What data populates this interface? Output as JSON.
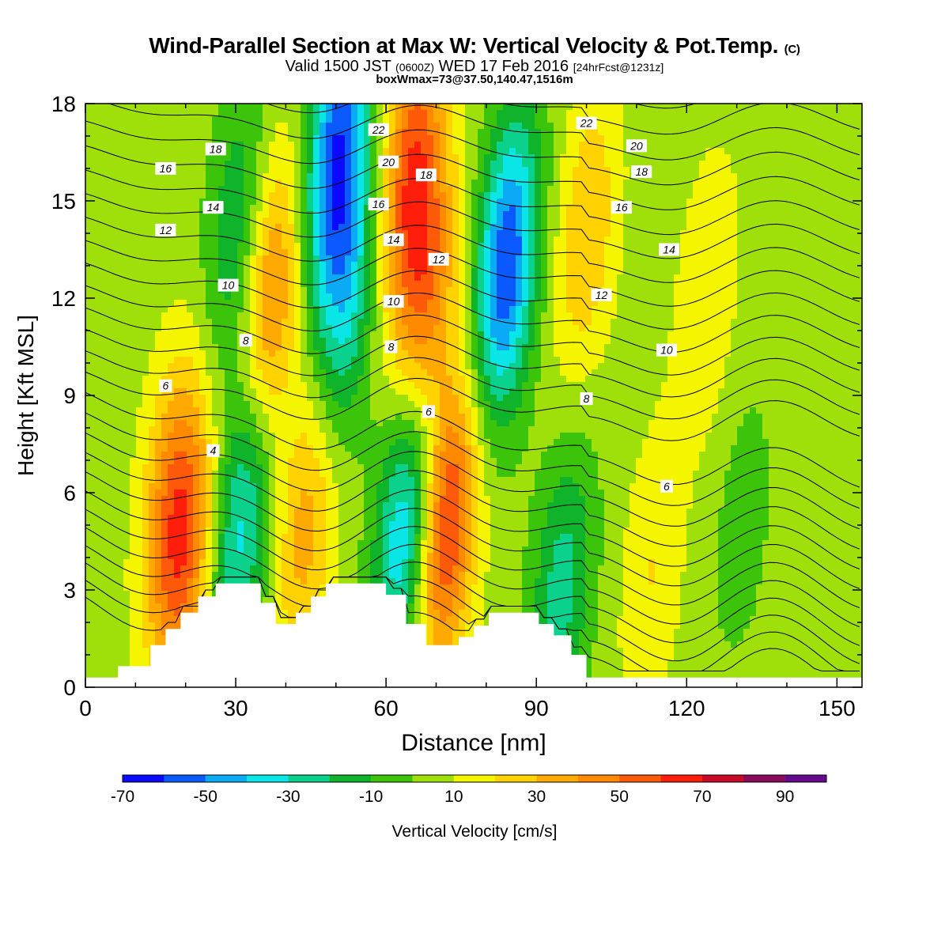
{
  "title": {
    "main": "Wind-Parallel Section at Max W: Vertical Velocity & Pot.Temp.",
    "copyright": "(C)",
    "valid_prefix": "Valid 1500 JST",
    "valid_z": "(0600Z)",
    "valid_date": "WED 17 Feb 2016",
    "forecast": "[24hrFcst@1231z]",
    "box_info": "boxWmax=73@37.50,140.47,1516m"
  },
  "colors": {
    "bins": [
      "#0a0aff",
      "#0a5aff",
      "#0aaaf5",
      "#0ae6e6",
      "#0ad28c",
      "#10b42a",
      "#3cc40a",
      "#a0e00a",
      "#f5f500",
      "#ffd200",
      "#ffaa00",
      "#ff8a00",
      "#ff5a0a",
      "#ff1e0a",
      "#c80a28",
      "#8c0a5a",
      "#640a8c"
    ],
    "terrain": "#ffffff",
    "contour": "#000000"
  },
  "chart_data": {
    "type": "heatmap",
    "xlabel": "Distance [nm]",
    "ylabel": "Height [Kft MSL]",
    "xlim": [
      0,
      155
    ],
    "ylim": [
      0,
      18
    ],
    "xticks": [
      0,
      30,
      60,
      90,
      120,
      150
    ],
    "yticks": [
      0,
      3,
      6,
      9,
      12,
      15,
      18
    ],
    "colorbar": {
      "label": "Vertical Velocity [cm/s]",
      "levels": [
        -70,
        -60,
        -50,
        -40,
        -30,
        -20,
        -10,
        0,
        10,
        20,
        30,
        40,
        50,
        60,
        70,
        80,
        90,
        100
      ],
      "tick_labels": [
        -70,
        -50,
        -30,
        -10,
        10,
        30,
        50,
        70,
        90
      ]
    },
    "terrain": [
      [
        0,
        0.3
      ],
      [
        6.5,
        0.3
      ],
      [
        6.5,
        0.65
      ],
      [
        13,
        0.65
      ],
      [
        13,
        1.3
      ],
      [
        16,
        1.3
      ],
      [
        16,
        1.8
      ],
      [
        19,
        1.8
      ],
      [
        19,
        2.3
      ],
      [
        22.5,
        2.3
      ],
      [
        22.5,
        2.8
      ],
      [
        26,
        2.8
      ],
      [
        26,
        3.2
      ],
      [
        35,
        3.2
      ],
      [
        35,
        2.6
      ],
      [
        38,
        2.6
      ],
      [
        38,
        1.95
      ],
      [
        42,
        1.95
      ],
      [
        42,
        2.3
      ],
      [
        45,
        2.3
      ],
      [
        45,
        2.8
      ],
      [
        48,
        2.8
      ],
      [
        48,
        3.2
      ],
      [
        60,
        3.2
      ],
      [
        60,
        2.85
      ],
      [
        64,
        2.85
      ],
      [
        64,
        1.95
      ],
      [
        68,
        1.95
      ],
      [
        68,
        1.3
      ],
      [
        74.5,
        1.3
      ],
      [
        74.5,
        1.55
      ],
      [
        77.5,
        1.55
      ],
      [
        77.5,
        1.9
      ],
      [
        80.5,
        1.9
      ],
      [
        80.5,
        2.3
      ],
      [
        90.5,
        2.3
      ],
      [
        90.5,
        1.95
      ],
      [
        93.5,
        1.95
      ],
      [
        93.5,
        1.6
      ],
      [
        97,
        1.6
      ],
      [
        97,
        1.0
      ],
      [
        100,
        1.0
      ],
      [
        100,
        0.3
      ],
      [
        155,
        0.3
      ]
    ],
    "updraft_max": {
      "value": 73,
      "location": "37.50,140.47",
      "height_m": 1516
    },
    "w_bands": [
      {
        "x": 17,
        "y": 6,
        "w": 30
      },
      {
        "x": 20,
        "y": 4,
        "w": 40
      },
      {
        "x": 31,
        "y": 5,
        "w": -40
      },
      {
        "x": 30,
        "y": 14,
        "w": -25
      },
      {
        "x": 37,
        "y": 12,
        "w": 40
      },
      {
        "x": 44,
        "y": 5,
        "w": 30
      },
      {
        "x": 50,
        "y": 16.5,
        "w": -60
      },
      {
        "x": 52,
        "y": 12,
        "w": -35
      },
      {
        "x": 64,
        "y": 5,
        "w": -50
      },
      {
        "x": 65,
        "y": 16,
        "w": 50
      },
      {
        "x": 68,
        "y": 12,
        "w": 40
      },
      {
        "x": 72,
        "y": 5,
        "w": 60
      },
      {
        "x": 84,
        "y": 13,
        "w": -65
      },
      {
        "x": 95,
        "y": 3,
        "w": -30
      },
      {
        "x": 100,
        "y": 14,
        "w": 25
      },
      {
        "x": 113,
        "y": 3.5,
        "w": 15
      },
      {
        "x": 124,
        "y": 12,
        "w": 15
      },
      {
        "x": 131,
        "y": 5,
        "w": -10
      }
    ],
    "contours": [
      {
        "label": "4",
        "level": 4
      },
      {
        "label": "6",
        "level": 6
      },
      {
        "label": "8",
        "level": 8
      },
      {
        "label": "10",
        "level": 10
      },
      {
        "label": "12",
        "level": 12
      },
      {
        "label": "14",
        "level": 14
      },
      {
        "label": "16",
        "level": 16
      },
      {
        "label": "18",
        "level": 18
      },
      {
        "label": "20",
        "level": 20
      },
      {
        "label": "22",
        "level": 22
      }
    ],
    "contour_labels": [
      {
        "text": "16",
        "x": 16,
        "y": 16.0
      },
      {
        "text": "18",
        "x": 26,
        "y": 16.6
      },
      {
        "text": "14",
        "x": 25.5,
        "y": 14.8
      },
      {
        "text": "12",
        "x": 16,
        "y": 14.1
      },
      {
        "text": "10",
        "x": 28.5,
        "y": 12.4
      },
      {
        "text": "8",
        "x": 32,
        "y": 10.7
      },
      {
        "text": "6",
        "x": 16,
        "y": 9.3
      },
      {
        "text": "4",
        "x": 25.5,
        "y": 7.3
      },
      {
        "text": "22",
        "x": 58.5,
        "y": 17.2
      },
      {
        "text": "20",
        "x": 60.5,
        "y": 16.2
      },
      {
        "text": "18",
        "x": 68,
        "y": 15.8
      },
      {
        "text": "16",
        "x": 58.5,
        "y": 14.9
      },
      {
        "text": "14",
        "x": 61.5,
        "y": 13.8
      },
      {
        "text": "12",
        "x": 70.5,
        "y": 13.2
      },
      {
        "text": "10",
        "x": 61.5,
        "y": 11.9
      },
      {
        "text": "8",
        "x": 61,
        "y": 10.5
      },
      {
        "text": "6",
        "x": 68.5,
        "y": 8.5
      },
      {
        "text": "22",
        "x": 100,
        "y": 17.4
      },
      {
        "text": "20",
        "x": 110,
        "y": 16.7
      },
      {
        "text": "18",
        "x": 111,
        "y": 15.9
      },
      {
        "text": "16",
        "x": 107,
        "y": 14.8
      },
      {
        "text": "14",
        "x": 116.5,
        "y": 13.5
      },
      {
        "text": "12",
        "x": 103,
        "y": 12.1
      },
      {
        "text": "10",
        "x": 116,
        "y": 10.4
      },
      {
        "text": "8",
        "x": 100,
        "y": 8.9
      },
      {
        "text": "6",
        "x": 116,
        "y": 6.2
      }
    ]
  }
}
